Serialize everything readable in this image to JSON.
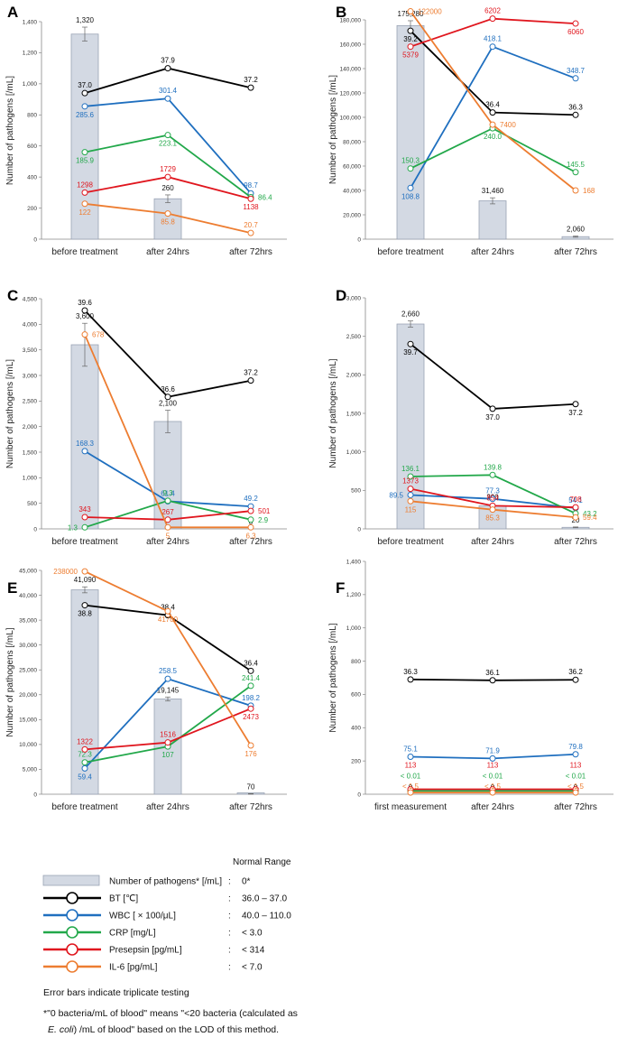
{
  "colors": {
    "BT": "#000000",
    "WBC": "#1f6fbf",
    "CRP": "#22a84a",
    "Presepsin": "#e0161e",
    "IL6": "#ed7d31",
    "bar_fill": "#d3d9e3",
    "bar_stroke": "#9aa3b5"
  },
  "chart_data": [
    {
      "panel": "A",
      "type": "bar+line",
      "ylabel": "Number of pathogens [/mL]",
      "ylim": [
        0,
        1400
      ],
      "yticks": [
        "0",
        "200",
        "400",
        "600",
        "800",
        "1,000",
        "1,200",
        "1,400"
      ],
      "ytick_values": [
        0,
        200,
        400,
        600,
        800,
        1000,
        1200,
        1400
      ],
      "categories": [
        "before treatment",
        "after 24hrs",
        "after 72hrs"
      ],
      "bars": {
        "values": [
          1320,
          260,
          0
        ],
        "labels": [
          "1,320",
          "260",
          ""
        ],
        "error": [
          45,
          25,
          0
        ]
      },
      "series": [
        {
          "key": "BT",
          "y": [
            940,
            1100,
            975
          ],
          "labels": [
            "37.0",
            "37.9",
            "37.2"
          ],
          "labelpos": [
            "a",
            "a",
            "a"
          ]
        },
        {
          "key": "WBC",
          "y": [
            855,
            905,
            295
          ],
          "labels": [
            "285.6",
            "301.4",
            "98.7"
          ],
          "labelpos": [
            "b",
            "a",
            "a"
          ]
        },
        {
          "key": "CRP",
          "y": [
            560,
            670,
            270
          ],
          "labels": [
            "185.9",
            "223.1",
            "86.4"
          ],
          "labelpos": [
            "b",
            "b",
            "r"
          ]
        },
        {
          "key": "Presepsin",
          "y": [
            300,
            400,
            260
          ],
          "labels": [
            "1298",
            "1729",
            "1138"
          ],
          "labelpos": [
            "a",
            "a",
            "b"
          ]
        },
        {
          "key": "IL6",
          "y": [
            228,
            165,
            40
          ],
          "labels": [
            "122",
            "85.8",
            "20.7"
          ],
          "labelpos": [
            "b",
            "b",
            "a"
          ]
        }
      ]
    },
    {
      "panel": "B",
      "type": "bar+line",
      "ylabel": "Number of pathogens [/mL]",
      "ylim": [
        0,
        180000
      ],
      "yticks": [
        "0",
        "20,000",
        "40,000",
        "60,000",
        "80,000",
        "100,000",
        "120,000",
        "140,000",
        "160,000",
        "180,000"
      ],
      "ytick_values": [
        0,
        20000,
        40000,
        60000,
        80000,
        100000,
        120000,
        140000,
        160000,
        180000
      ],
      "categories": [
        "before treatment",
        "after 24hrs",
        "after 72hrs"
      ],
      "bars": {
        "values": [
          175280,
          31460,
          2060
        ],
        "labels": [
          "175,280",
          "31,460",
          "2,060"
        ],
        "error": [
          4000,
          2500,
          500
        ]
      },
      "series": [
        {
          "key": "BT",
          "y": [
            171000,
            104000,
            102000
          ],
          "labels": [
            "39.2",
            "36.4",
            "36.3"
          ],
          "labelpos": [
            "b",
            "a",
            "a"
          ]
        },
        {
          "key": "WBC",
          "y": [
            42000,
            158000,
            132000
          ],
          "labels": [
            "108.8",
            "418.1",
            "348.7"
          ],
          "labelpos": [
            "b",
            "a",
            "a"
          ]
        },
        {
          "key": "CRP",
          "y": [
            58000,
            91000,
            55000
          ],
          "labels": [
            "150.3",
            "240.0",
            "145.5"
          ],
          "labelpos": [
            "a",
            "b",
            "a"
          ]
        },
        {
          "key": "Presepsin",
          "y": [
            158000,
            181000,
            177000
          ],
          "labels": [
            "5379",
            "6202",
            "6060"
          ],
          "labelpos": [
            "b",
            "a",
            "b"
          ]
        },
        {
          "key": "IL6",
          "y": [
            187000,
            94000,
            40000
          ],
          "labels": [
            "122000",
            "7400",
            "168"
          ],
          "labelpos": [
            "r",
            "r",
            "r"
          ]
        }
      ]
    },
    {
      "panel": "C",
      "type": "bar+line",
      "ylabel": "Number of pathogens [/mL]",
      "ylim": [
        0,
        4500
      ],
      "yticks": [
        "0",
        "500",
        "1,000",
        "1,500",
        "2,000",
        "2,500",
        "3,000",
        "3,500",
        "4,000",
        "4,500"
      ],
      "ytick_values": [
        0,
        500,
        1000,
        1500,
        2000,
        2500,
        3000,
        3500,
        4000,
        4500
      ],
      "categories": [
        "before treatment",
        "after 24hrs",
        "after 72hrs"
      ],
      "bars": {
        "values": [
          3600,
          2100,
          0
        ],
        "labels": [
          "3,600",
          "2,100",
          "0"
        ],
        "error": [
          420,
          220,
          0
        ]
      },
      "series": [
        {
          "key": "BT",
          "y": [
            4270,
            2580,
            2900
          ],
          "labels": [
            "39.6",
            "36.6",
            "37.2"
          ],
          "labelpos": [
            "a",
            "a",
            "a"
          ]
        },
        {
          "key": "WBC",
          "y": [
            1520,
            540,
            440
          ],
          "labels": [
            "168.3",
            "61.4",
            "49.2"
          ],
          "labelpos": [
            "a",
            "a",
            "a"
          ]
        },
        {
          "key": "CRP",
          "y": [
            30,
            550,
            180
          ],
          "labels": [
            "1.3",
            "9.3",
            "2.9"
          ],
          "labelpos": [
            "l",
            "a",
            "r"
          ]
        },
        {
          "key": "Presepsin",
          "y": [
            230,
            180,
            350
          ],
          "labels": [
            "343",
            "267",
            "501"
          ],
          "labelpos": [
            "a",
            "a",
            "r"
          ]
        },
        {
          "key": "IL6",
          "y": [
            3800,
            30,
            30
          ],
          "labels": [
            "678",
            "5",
            "6.3"
          ],
          "labelpos": [
            "r",
            "b",
            "b"
          ]
        }
      ]
    },
    {
      "panel": "D",
      "type": "bar+line",
      "ylabel": "Number of pathogens [/mL]",
      "ylim": [
        0,
        3000
      ],
      "yticks": [
        "0",
        "500",
        "1,000",
        "1,500",
        "2,000",
        "2,500",
        "3,000"
      ],
      "ytick_values": [
        0,
        500,
        1000,
        1500,
        2000,
        2500,
        3000
      ],
      "categories": [
        "before treatment",
        "after 24hrs",
        "after 72hrs"
      ],
      "bars": {
        "values": [
          2660,
          300,
          20
        ],
        "labels": [
          "2,660",
          "300",
          "20"
        ],
        "error": [
          40,
          20,
          5
        ]
      },
      "series": [
        {
          "key": "BT",
          "y": [
            2400,
            1560,
            1620
          ],
          "labels": [
            "39.7",
            "37.0",
            "37.2"
          ],
          "labelpos": [
            "b",
            "b",
            "b"
          ]
        },
        {
          "key": "WBC",
          "y": [
            440,
            390,
            270
          ],
          "labels": [
            "89.5",
            "77.3",
            "54.1"
          ],
          "labelpos": [
            "l",
            "a",
            "a"
          ]
        },
        {
          "key": "CRP",
          "y": [
            680,
            700,
            200
          ],
          "labels": [
            "136.1",
            "139.8",
            "43.2"
          ],
          "labelpos": [
            "a",
            "a",
            "r"
          ]
        },
        {
          "key": "Presepsin",
          "y": [
            520,
            300,
            280
          ],
          "labels": [
            "1373",
            "854",
            "708"
          ],
          "labelpos": [
            "a",
            "a",
            "a"
          ]
        },
        {
          "key": "IL6",
          "y": [
            360,
            250,
            150
          ],
          "labels": [
            "115",
            "85.3",
            "59.4"
          ],
          "labelpos": [
            "b",
            "b",
            "r"
          ]
        }
      ]
    },
    {
      "panel": "E",
      "type": "bar+line",
      "ylabel": "Number of pathogens [/mL]",
      "ylim": [
        0,
        45000
      ],
      "yticks": [
        "0",
        "5,000",
        "10,000",
        "15,000",
        "20,000",
        "25,000",
        "30,000",
        "35,000",
        "40,000",
        "45,000"
      ],
      "ytick_values": [
        0,
        5000,
        10000,
        15000,
        20000,
        25000,
        30000,
        35000,
        40000,
        45000
      ],
      "categories": [
        "before treatment",
        "after 24hrs",
        "after 72hrs"
      ],
      "bars": {
        "values": [
          41090,
          19145,
          70
        ],
        "labels": [
          "41,090",
          "19,145",
          "70"
        ],
        "error": [
          600,
          400,
          50
        ]
      },
      "series": [
        {
          "key": "BT",
          "y": [
            38000,
            36000,
            24800
          ],
          "labels": [
            "38.8",
            "38.4",
            "36.4"
          ],
          "labelpos": [
            "b",
            "a",
            "a"
          ]
        },
        {
          "key": "WBC",
          "y": [
            5200,
            23200,
            17800
          ],
          "labels": [
            "59.4",
            "258.5",
            "198.2"
          ],
          "labelpos": [
            "b",
            "a",
            "a"
          ]
        },
        {
          "key": "CRP",
          "y": [
            6400,
            9600,
            21800
          ],
          "labels": [
            "72.3",
            "107",
            "241.4"
          ],
          "labelpos": [
            "a",
            "b",
            "a"
          ]
        },
        {
          "key": "Presepsin",
          "y": [
            9000,
            10400,
            17200
          ],
          "labels": [
            "1322",
            "1516",
            "2473"
          ],
          "labelpos": [
            "a",
            "a",
            "b"
          ]
        },
        {
          "key": "IL6",
          "y": [
            44800,
            36800,
            9800
          ],
          "labels": [
            "238000",
            "41700",
            "176"
          ],
          "labelpos": [
            "l",
            "b",
            "b"
          ]
        }
      ]
    },
    {
      "panel": "F",
      "type": "bar+line",
      "ylabel": "Number of pathogens [/mL]",
      "ylim": [
        0,
        1400
      ],
      "yticks": [
        "0",
        "200",
        "400",
        "600",
        "800",
        "1,000",
        "1,200",
        "1,400"
      ],
      "ytick_values": [
        0,
        200,
        400,
        600,
        800,
        1000,
        1200,
        1400
      ],
      "categories": [
        "first measurement",
        "after 24hrs",
        "after 72hrs"
      ],
      "bars": {
        "values": [
          0,
          0,
          0
        ],
        "labels": [
          "0",
          "0",
          "0"
        ],
        "error": [
          0,
          0,
          0
        ]
      },
      "series": [
        {
          "key": "BT",
          "y": [
            690,
            685,
            688
          ],
          "labels": [
            "36.3",
            "36.1",
            "36.2"
          ],
          "labelpos": [
            "a",
            "a",
            "a"
          ]
        },
        {
          "key": "WBC",
          "y": [
            225,
            215,
            240
          ],
          "labels": [
            "75.1",
            "71.9",
            "79.8"
          ],
          "labelpos": [
            "a",
            "a",
            "a"
          ]
        },
        {
          "key": "CRP",
          "y": [
            20,
            20,
            20
          ],
          "labels": [
            "< 0.01",
            "< 0.01",
            "< 0.01"
          ],
          "labelpos": [
            "a2",
            "a2",
            "a2"
          ]
        },
        {
          "key": "Presepsin",
          "y": [
            30,
            30,
            30
          ],
          "labels": [
            "113",
            "113",
            "113"
          ],
          "labelpos": [
            "a3",
            "a3",
            "a3"
          ]
        },
        {
          "key": "IL6",
          "y": [
            10,
            10,
            10
          ],
          "labels": [
            "< 1.5",
            "< 1.5",
            "< 1.5"
          ],
          "labelpos": [
            "a1",
            "a1",
            "a1"
          ]
        }
      ]
    }
  ],
  "legend": {
    "header": "Normal Range",
    "items": [
      {
        "key": "bar",
        "label": "Number of pathogens* [/mL]",
        "range": "0*"
      },
      {
        "key": "BT",
        "label": "BT [℃]",
        "range": "36.0 – 37.0"
      },
      {
        "key": "WBC",
        "label": "WBC [ × 100/μL]",
        "range": "40.0 – 110.0"
      },
      {
        "key": "CRP",
        "label": "CRP [mg/L]",
        "range": "< 3.0"
      },
      {
        "key": "Presepsin",
        "label": "Presepsin [pg/mL]",
        "range": "< 314"
      },
      {
        "key": "IL6",
        "label": "IL-6 [pg/mL]",
        "range": "< 7.0"
      }
    ],
    "sep": ":"
  },
  "notes": {
    "line1": "Error bars indicate triplicate testing",
    "line2": "*\"0 bacteria/mL of blood\" means \"<20 bacteria (calculated as",
    "line3_italic": "E. coli",
    "line3_rest": ") /mL of blood\" based on the LOD of this method."
  }
}
